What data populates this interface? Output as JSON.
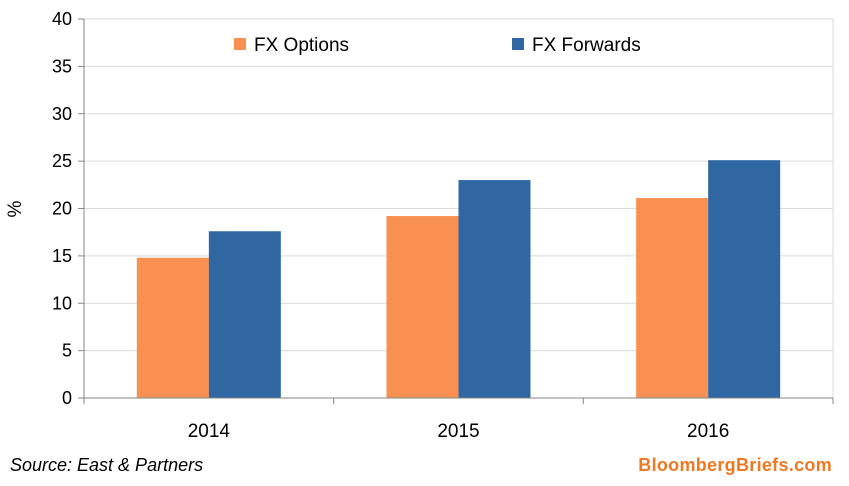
{
  "chart_data": {
    "type": "bar",
    "categories": [
      "2014",
      "2015",
      "2016"
    ],
    "series": [
      {
        "name": "FX Options",
        "values": [
          14.8,
          19.2,
          21.1
        ],
        "color": "#F79050"
      },
      {
        "name": "FX Forwards",
        "values": [
          17.6,
          23.0,
          25.1
        ],
        "color": "#2F67A3"
      }
    ],
    "ylabel": "%",
    "xlabel": "",
    "ylim": [
      0,
      40
    ],
    "yticks": [
      0,
      5,
      10,
      15,
      20,
      25,
      30,
      35,
      40
    ],
    "grid": true,
    "legend_position": "top"
  },
  "footer": {
    "source": "Source: East & Partners",
    "brand": "BloombergBriefs.com",
    "brand_color": "#F07820"
  },
  "colors": {
    "gridline": "#D9D9D9",
    "axis": "#868686"
  }
}
